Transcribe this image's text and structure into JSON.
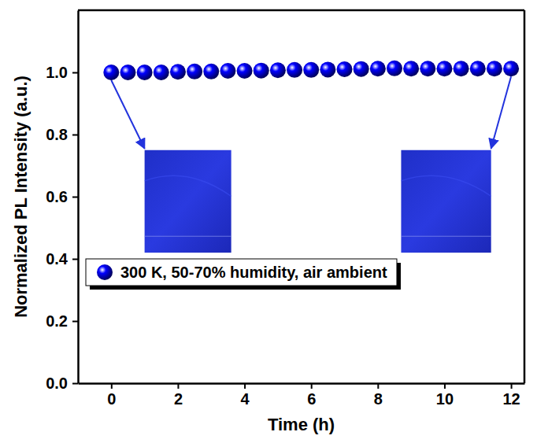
{
  "chart_data": {
    "type": "scatter",
    "x_label": "Time (h)",
    "y_label": "Normalized PL Intensity (a.u.)",
    "x": [
      0,
      0.5,
      1,
      1.5,
      2,
      2.5,
      3,
      3.5,
      4,
      4.5,
      5,
      5.5,
      6,
      6.5,
      7,
      7.5,
      8,
      8.5,
      9,
      9.5,
      10,
      10.5,
      11,
      11.5,
      12
    ],
    "series": [
      {
        "name": "300 K, 50-70% humidity, air ambient",
        "color": "#0000ff",
        "marker": "circle",
        "values": [
          1.0,
          1.0,
          1.0,
          1.0,
          1.002,
          1.003,
          1.003,
          1.005,
          1.005,
          1.006,
          1.007,
          1.008,
          1.008,
          1.009,
          1.01,
          1.011,
          1.012,
          1.013,
          1.012,
          1.012,
          1.012,
          1.012,
          1.012,
          1.012,
          1.012
        ]
      }
    ],
    "xlim": [
      -1,
      12.4
    ],
    "ylim": [
      0,
      1.2
    ],
    "xticks": [
      0,
      2,
      4,
      6,
      8,
      10,
      12
    ],
    "yticks": [
      {
        "value": 0,
        "label": "0.0"
      },
      {
        "value": 0.2,
        "label": "0.2"
      },
      {
        "value": 0.4,
        "label": "0.4"
      },
      {
        "value": 0.6,
        "label": "0.6"
      },
      {
        "value": 0.8,
        "label": "0.8"
      },
      {
        "value": 1.0,
        "label": "1.0"
      }
    ],
    "legend": "lower left",
    "grid": false
  }
}
